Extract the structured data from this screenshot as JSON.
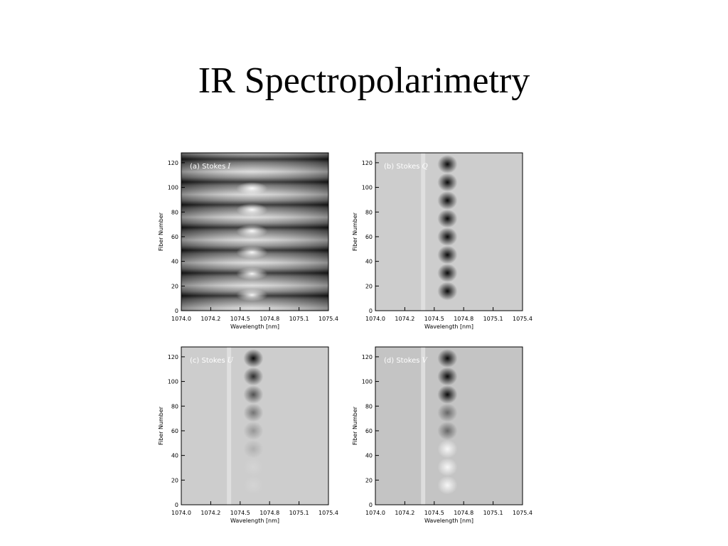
{
  "title": "IR Spectropolarimetry",
  "panels": [
    {
      "label": "(a) Stokes",
      "stokes": "I",
      "xlabel": "Wavelength [nm]",
      "ylabel": "Fiber Number",
      "xticks": [
        "1074.0",
        "1074.2",
        "1074.5",
        "1074.8",
        "1075.1",
        "1075.4"
      ],
      "yticks": [
        "0",
        "20",
        "40",
        "60",
        "80",
        "100",
        "120"
      ]
    },
    {
      "label": "(b) Stokes",
      "stokes": "Q",
      "xlabel": "Wavelength [nm]",
      "ylabel": "Fiber Number",
      "xticks": [
        "1074.0",
        "1074.2",
        "1074.5",
        "1074.8",
        "1075.1",
        "1075.4"
      ],
      "yticks": [
        "0",
        "20",
        "40",
        "60",
        "80",
        "100",
        "120"
      ]
    },
    {
      "label": "(c) Stokes",
      "stokes": "U",
      "xlabel": "Wavelength [nm]",
      "ylabel": "Fiber Number",
      "xticks": [
        "1074.0",
        "1074.2",
        "1074.5",
        "1074.8",
        "1075.1",
        "1075.4"
      ],
      "yticks": [
        "0",
        "20",
        "40",
        "60",
        "80",
        "100",
        "120"
      ]
    },
    {
      "label": "(d) Stokes",
      "stokes": "V",
      "xlabel": "Wavelength [nm]",
      "ylabel": "Fiber Number",
      "xticks": [
        "1074.0",
        "1074.2",
        "1074.5",
        "1074.8",
        "1075.1",
        "1075.4"
      ],
      "yticks": [
        "0",
        "20",
        "40",
        "60",
        "80",
        "100",
        "120"
      ]
    }
  ]
}
